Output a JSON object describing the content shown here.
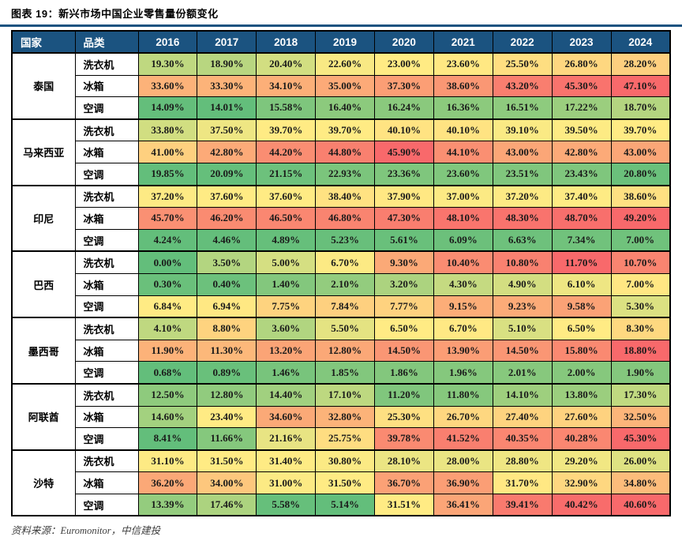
{
  "figure": {
    "title": "图表 19：新兴市场中国企业零售量份额变化",
    "source_note": "资料来源：Euromonitor，中信建投"
  },
  "colors": {
    "header_bg": "#1B5380",
    "header_text": "#FFFFFF",
    "title_rule": "#1B5380",
    "cell_text": "#1A1A1A",
    "border": "#000000"
  },
  "chart_data": {
    "type": "heatmap",
    "title": "新兴市场中国企业零售量份额变化",
    "unit": "percent",
    "column_headers": {
      "country": "国家",
      "category": "品类"
    },
    "years": [
      "2016",
      "2017",
      "2018",
      "2019",
      "2020",
      "2021",
      "2022",
      "2023",
      "2024"
    ],
    "heatmap_scale": {
      "min_color": "#63BE7B",
      "mid_color": "#FFEB84",
      "max_color": "#F8696B",
      "scope": "per_country_block",
      "midpoint": "median"
    },
    "groups": [
      {
        "country": "泰国",
        "rows": [
          {
            "category": "洗衣机",
            "values": [
              19.3,
              18.9,
              20.4,
              22.6,
              23.0,
              23.6,
              25.5,
              26.8,
              28.2
            ]
          },
          {
            "category": "冰箱",
            "values": [
              33.6,
              33.3,
              34.1,
              35.0,
              37.3,
              38.6,
              43.2,
              45.3,
              47.1
            ]
          },
          {
            "category": "空调",
            "values": [
              14.09,
              14.01,
              15.58,
              16.4,
              16.24,
              16.36,
              16.51,
              17.22,
              18.7
            ]
          }
        ]
      },
      {
        "country": "马来西亚",
        "rows": [
          {
            "category": "洗衣机",
            "values": [
              33.8,
              37.5,
              39.7,
              39.7,
              40.1,
              40.1,
              39.1,
              39.5,
              39.7
            ]
          },
          {
            "category": "冰箱",
            "values": [
              41.0,
              42.8,
              44.2,
              44.8,
              45.9,
              44.1,
              43.0,
              42.8,
              43.0
            ]
          },
          {
            "category": "空调",
            "values": [
              19.85,
              20.09,
              21.15,
              22.93,
              23.36,
              23.6,
              23.51,
              23.43,
              20.8
            ]
          }
        ]
      },
      {
        "country": "印尼",
        "rows": [
          {
            "category": "洗衣机",
            "values": [
              37.2,
              37.6,
              37.6,
              38.4,
              37.9,
              37.0,
              37.2,
              37.4,
              38.6
            ]
          },
          {
            "category": "冰箱",
            "values": [
              45.7,
              46.2,
              46.5,
              46.8,
              47.3,
              48.1,
              48.3,
              48.7,
              49.2
            ]
          },
          {
            "category": "空调",
            "values": [
              4.24,
              4.46,
              4.89,
              5.23,
              5.61,
              6.09,
              6.63,
              7.34,
              7.0
            ]
          }
        ]
      },
      {
        "country": "巴西",
        "rows": [
          {
            "category": "洗衣机",
            "values": [
              0.0,
              3.5,
              5.0,
              6.7,
              9.3,
              10.4,
              10.8,
              11.7,
              10.7
            ]
          },
          {
            "category": "冰箱",
            "values": [
              0.3,
              0.4,
              1.4,
              2.1,
              3.2,
              4.3,
              4.9,
              6.1,
              7.0
            ]
          },
          {
            "category": "空调",
            "values": [
              6.84,
              6.94,
              7.75,
              7.84,
              7.77,
              9.15,
              9.23,
              9.58,
              5.3
            ]
          }
        ]
      },
      {
        "country": "墨西哥",
        "rows": [
          {
            "category": "洗衣机",
            "values": [
              4.1,
              8.8,
              3.6,
              5.5,
              6.5,
              6.7,
              5.1,
              6.5,
              8.3
            ]
          },
          {
            "category": "冰箱",
            "values": [
              11.9,
              11.3,
              13.2,
              12.8,
              14.5,
              13.9,
              14.5,
              15.8,
              18.8
            ]
          },
          {
            "category": "空调",
            "values": [
              0.68,
              0.89,
              1.46,
              1.85,
              1.86,
              1.96,
              2.01,
              2.0,
              1.9
            ]
          }
        ]
      },
      {
        "country": "阿联酋",
        "rows": [
          {
            "category": "洗衣机",
            "values": [
              12.5,
              12.8,
              14.4,
              17.1,
              11.2,
              11.8,
              14.1,
              13.8,
              17.3
            ]
          },
          {
            "category": "冰箱",
            "values": [
              14.6,
              23.4,
              34.6,
              32.8,
              25.3,
              26.7,
              27.4,
              27.6,
              32.5
            ]
          },
          {
            "category": "空调",
            "values": [
              8.41,
              11.66,
              21.16,
              25.75,
              39.78,
              41.52,
              40.35,
              40.28,
              45.3
            ]
          }
        ]
      },
      {
        "country": "沙特",
        "rows": [
          {
            "category": "洗衣机",
            "values": [
              31.1,
              31.5,
              31.4,
              30.8,
              28.1,
              28.0,
              28.8,
              29.2,
              26.0
            ]
          },
          {
            "category": "冰箱",
            "values": [
              36.2,
              34.0,
              31.0,
              31.5,
              36.7,
              36.9,
              31.7,
              32.9,
              34.8
            ]
          },
          {
            "category": "空调",
            "values": [
              13.39,
              17.46,
              5.58,
              5.14,
              31.51,
              36.41,
              39.41,
              40.42,
              40.6
            ]
          }
        ]
      }
    ]
  }
}
